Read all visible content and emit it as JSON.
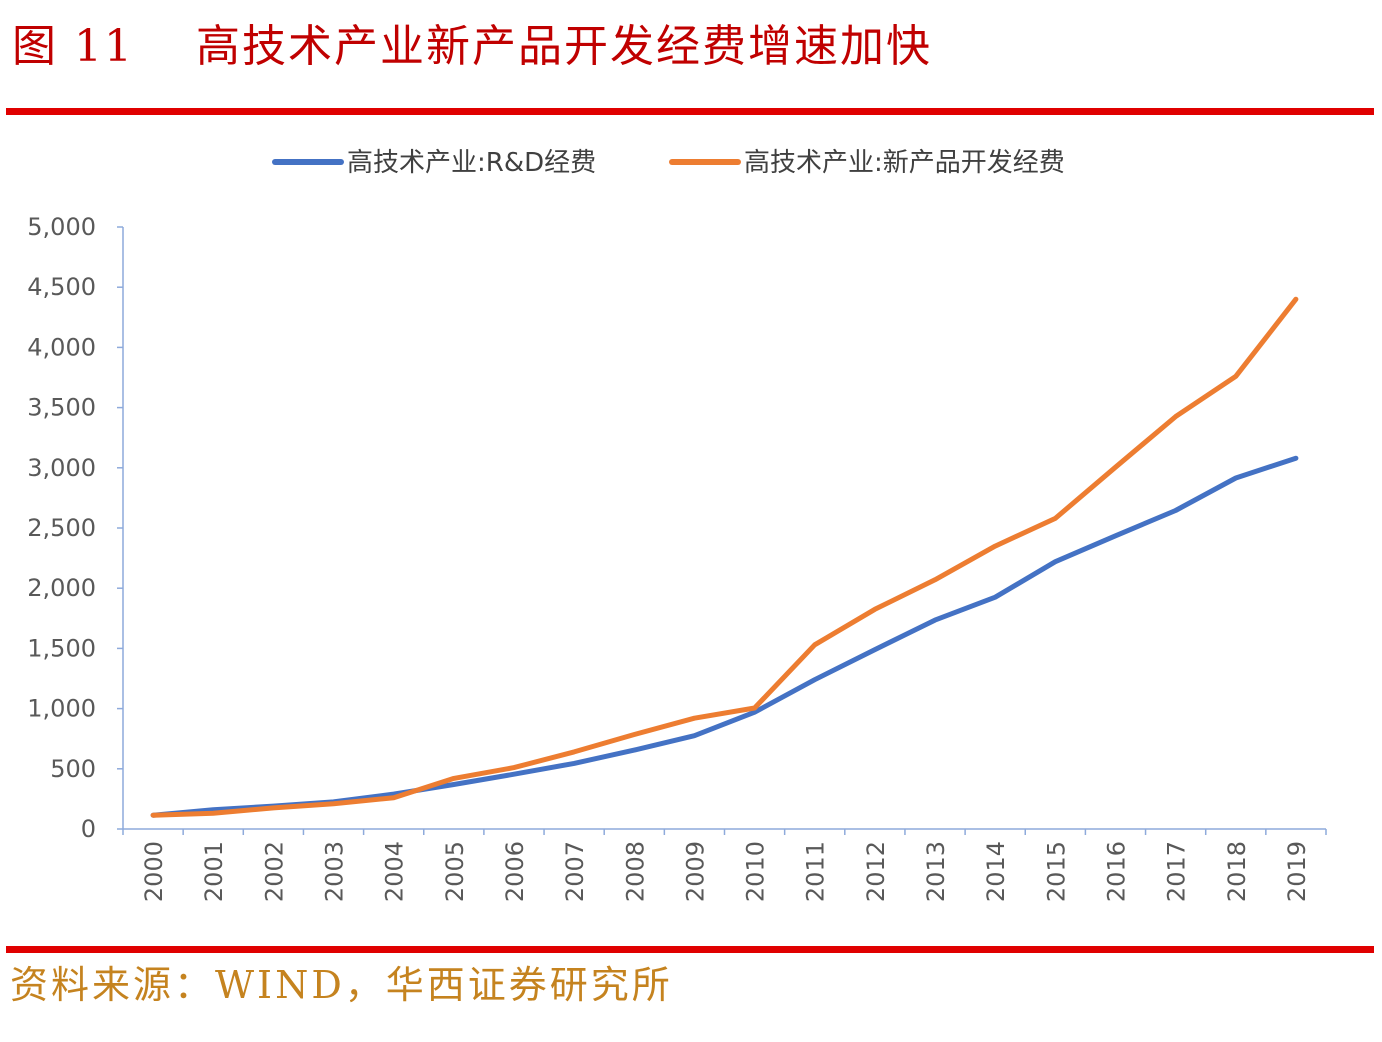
{
  "figure": {
    "number": "图 11",
    "title": "高技术产业新产品开发经费增速加快"
  },
  "source": "资料来源：WIND，华西证券研究所",
  "colors": {
    "accent_red": "#e00000",
    "title_red": "#c00000",
    "source_gold": "#c5831f",
    "series_blue": "#4472c4",
    "series_orange": "#ed7d31"
  },
  "chart_data": {
    "type": "line",
    "title": "",
    "xlabel": "",
    "ylabel": "",
    "ylim": [
      0,
      5000
    ],
    "yticks": [
      0,
      500,
      1000,
      1500,
      2000,
      2500,
      3000,
      3500,
      4000,
      4500,
      5000
    ],
    "ytick_labels": [
      "0",
      "500",
      "1,000",
      "1,500",
      "2,000",
      "2,500",
      "3,000",
      "3,500",
      "4,000",
      "4,500",
      "5,000"
    ],
    "grid": false,
    "legend_position": "top",
    "categories": [
      "2000",
      "2001",
      "2002",
      "2003",
      "2004",
      "2005",
      "2006",
      "2007",
      "2008",
      "2009",
      "2010",
      "2011",
      "2012",
      "2013",
      "2014",
      "2015",
      "2016",
      "2017",
      "2018",
      "2019"
    ],
    "series": [
      {
        "name": "高技术产业:R&D经费",
        "color": "#4472c4",
        "values": [
          115,
          160,
          190,
          225,
          290,
          370,
          455,
          545,
          655,
          775,
          970,
          1240,
          1490,
          1735,
          1925,
          2220,
          2435,
          2645,
          2915,
          3080
        ]
      },
      {
        "name": "高技术产业:新产品开发经费",
        "color": "#ed7d31",
        "values": [
          115,
          130,
          175,
          210,
          260,
          420,
          510,
          640,
          785,
          920,
          1005,
          1530,
          1825,
          2070,
          2350,
          2580,
          3005,
          3425,
          3760,
          4400
        ]
      }
    ]
  }
}
